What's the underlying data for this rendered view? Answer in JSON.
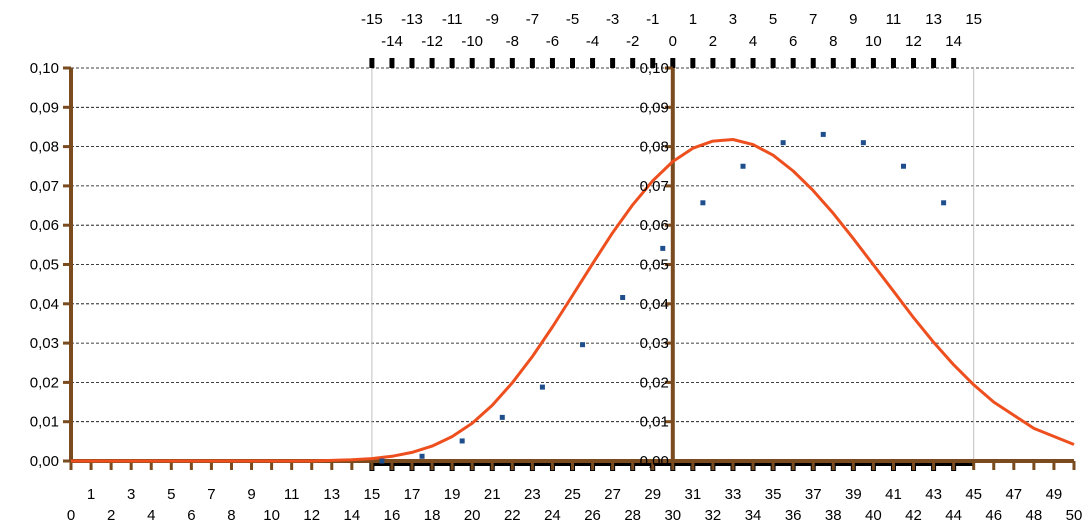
{
  "chart_data": {
    "type": "line",
    "title": "",
    "xlabel": "",
    "ylabel": "",
    "xlim": [
      0,
      50
    ],
    "ylim": [
      0,
      0.1
    ],
    "x_ticks": [
      0,
      1,
      2,
      3,
      4,
      5,
      6,
      7,
      8,
      9,
      10,
      11,
      12,
      13,
      14,
      15,
      16,
      17,
      18,
      19,
      20,
      21,
      22,
      23,
      24,
      25,
      26,
      27,
      28,
      29,
      30,
      31,
      32,
      33,
      34,
      35,
      36,
      37,
      38,
      39,
      40,
      41,
      42,
      43,
      44,
      45,
      46,
      47,
      48,
      49,
      50
    ],
    "y_ticks": [
      "0,00",
      "0,01",
      "0,02",
      "0,03",
      "0,04",
      "0,05",
      "0,06",
      "0,07",
      "0,08",
      "0,09",
      "0,10"
    ],
    "secondary_x": {
      "range": [
        -15,
        15
      ],
      "ticks": [
        -15,
        -14,
        -13,
        -12,
        -11,
        -10,
        -9,
        -8,
        -7,
        -6,
        -5,
        -4,
        -3,
        -2,
        -1,
        0,
        1,
        2,
        3,
        4,
        5,
        6,
        7,
        8,
        9,
        10,
        11,
        12,
        13,
        14,
        15
      ]
    },
    "secondary_y": {
      "ticks": [
        "0,00",
        "0,01",
        "0,02",
        "0,03",
        "0,04",
        "0,05",
        "0,06",
        "0,07",
        "0,08",
        "0,09",
        "0,10"
      ]
    },
    "grid": {
      "y": "dashed",
      "x": "none"
    },
    "vertical_reference_lines": [
      15,
      45
    ],
    "series": [
      {
        "style": "solid",
        "color": "#ee4f1f",
        "x": [
          0,
          5,
          10,
          12,
          14,
          15,
          16,
          17,
          18,
          19,
          20,
          21,
          22,
          23,
          24,
          25,
          26,
          27,
          28,
          29,
          30,
          31,
          32,
          33,
          34,
          35,
          36,
          37,
          38,
          39,
          40,
          41,
          42,
          43,
          44,
          45,
          46,
          48,
          50
        ],
        "y": [
          0.0,
          0.0,
          0.0,
          0.0,
          0.0003,
          0.0006,
          0.0012,
          0.0022,
          0.0038,
          0.0062,
          0.0096,
          0.0142,
          0.0199,
          0.0266,
          0.0341,
          0.0421,
          0.0502,
          0.0581,
          0.0652,
          0.0713,
          0.0762,
          0.0796,
          0.0814,
          0.0818,
          0.0805,
          0.0778,
          0.0738,
          0.0688,
          0.063,
          0.0566,
          0.0499,
          0.0432,
          0.0365,
          0.0302,
          0.0245,
          0.0194,
          0.015,
          0.0083,
          0.0042
        ]
      },
      {
        "style": "dotted",
        "color": "#1f4e8c",
        "x": [
          15.5,
          17.5,
          19.5,
          21.5,
          23.5,
          25.5,
          27.5,
          29.5,
          31.5,
          33.5,
          35.5,
          37.5,
          39.5,
          41.5,
          43.5
        ],
        "y": [
          0.0,
          0.0012,
          0.0051,
          0.0111,
          0.0188,
          0.0296,
          0.0416,
          0.0541,
          0.0657,
          0.075,
          0.081,
          0.0831,
          0.081,
          0.075,
          0.0657
        ]
      }
    ]
  },
  "colors": {
    "axis": "#7a4b1e",
    "grid": "#000000",
    "reference_line": "#c0c0c0",
    "secondary_ticks": "#000000",
    "curve": "#ee4f1f",
    "dots": "#1f4e8c"
  }
}
